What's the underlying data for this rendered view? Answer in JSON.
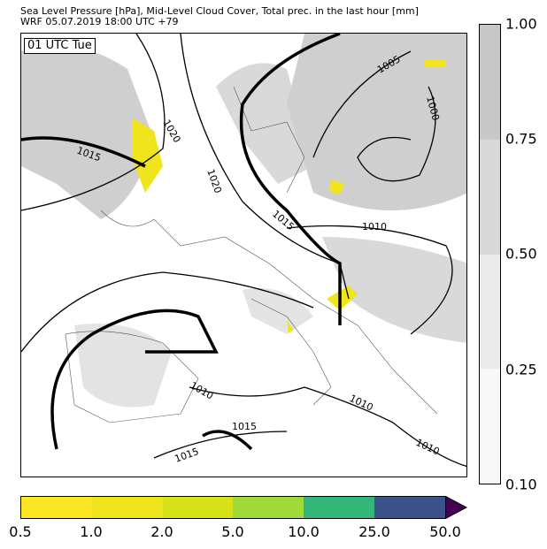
{
  "title_line1": "Sea Level Pressure [hPa], Mid-Level Cloud Cover, Total prec. in the last hour [mm]",
  "title_line2": "WRF 05.07.2019 18:00 UTC +79",
  "time_label": "01 UTC Tue",
  "isobar_labels": [
    "1020",
    "1015",
    "1020",
    "1015",
    "1010",
    "1005",
    "1000",
    "1010",
    "1010",
    "1015",
    "1015",
    "1010"
  ],
  "cloud_colorbar": {
    "ticks": [
      "1.00",
      "0.75",
      "0.50",
      "0.25",
      "0.10"
    ],
    "colors": [
      "#c8c8c8",
      "#d9d9d9",
      "#ebebeb",
      "#f8f8f8"
    ]
  },
  "precip_colorbar": {
    "ticks": [
      "0.5",
      "1.0",
      "2.0",
      "5.0",
      "10.0",
      "25.0",
      "50.0"
    ],
    "colors": [
      "#fde725",
      "#f0e51c",
      "#d8e219",
      "#a0da39",
      "#33b679",
      "#3b528b",
      "#440154"
    ]
  }
}
